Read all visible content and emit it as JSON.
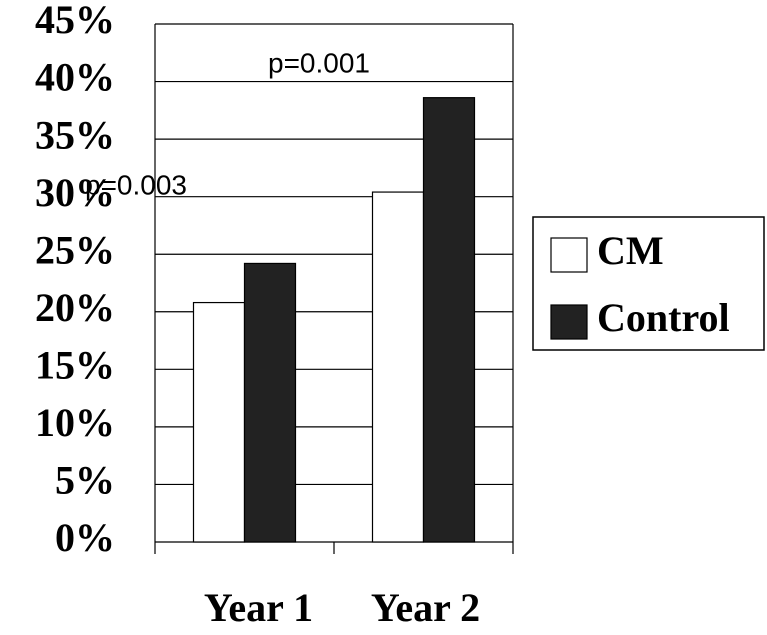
{
  "chart_data": {
    "type": "bar",
    "categories": [
      "Year 1",
      "Year 2"
    ],
    "series": [
      {
        "name": "CM",
        "color": "#ffffff",
        "values": [
          20.8,
          30.4
        ]
      },
      {
        "name": "Control",
        "color": "#222222",
        "values": [
          24.2,
          38.6
        ]
      }
    ],
    "ylim": [
      0,
      45
    ],
    "yticks": [
      {
        "value": 0,
        "label": "0%"
      },
      {
        "value": 5,
        "label": "5%"
      },
      {
        "value": 10,
        "label": "10%"
      },
      {
        "value": 15,
        "label": "15%"
      },
      {
        "value": 20,
        "label": "20%"
      },
      {
        "value": 25,
        "label": "25%"
      },
      {
        "value": 30,
        "label": "30%"
      },
      {
        "value": 35,
        "label": "35%"
      },
      {
        "value": 40,
        "label": "40%"
      },
      {
        "value": 45,
        "label": "45%"
      }
    ],
    "grid": true,
    "annotations": [
      "p=0.003",
      "p=0.001"
    ],
    "legend": "right"
  }
}
